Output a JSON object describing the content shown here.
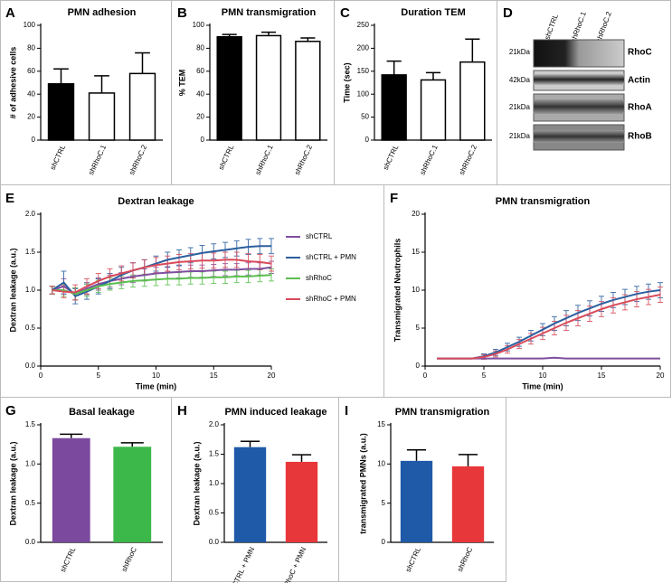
{
  "chart_data": [
    {
      "type": "bar",
      "label": "A",
      "title": "PMN adhesion",
      "ylabel": "# of adhesive cells",
      "categories": [
        "shCTRL",
        "shRhoC.1",
        "shRhoC.2"
      ],
      "values": [
        49,
        41,
        58
      ],
      "errors": [
        13,
        15,
        18
      ],
      "colors": [
        "#000000",
        "#ffffff",
        "#ffffff"
      ],
      "outline": true,
      "ylim": [
        0,
        100
      ],
      "yticks": [
        0,
        20,
        40,
        60,
        80,
        100
      ]
    },
    {
      "type": "bar",
      "label": "B",
      "title": "PMN transmigration",
      "ylabel": "% TEM",
      "categories": [
        "shCTRL",
        "shRhoC.1",
        "shRhoC.2"
      ],
      "values": [
        90,
        91,
        86
      ],
      "errors": [
        2,
        3,
        3
      ],
      "colors": [
        "#000000",
        "#ffffff",
        "#ffffff"
      ],
      "outline": true,
      "ylim": [
        0,
        100
      ],
      "yticks": [
        0,
        20,
        40,
        60,
        80,
        100
      ]
    },
    {
      "type": "bar",
      "label": "C",
      "title": "Duration TEM",
      "ylabel": "Time (sec)",
      "categories": [
        "shCTRL",
        "shRhoC.1",
        "shRhoC.2"
      ],
      "values": [
        142,
        131,
        170
      ],
      "errors": [
        30,
        16,
        50
      ],
      "colors": [
        "#000000",
        "#ffffff",
        "#ffffff"
      ],
      "outline": true,
      "ylim": [
        0,
        250
      ],
      "yticks": [
        0,
        50,
        100,
        150,
        200,
        250
      ]
    },
    {
      "type": "line",
      "label": "E",
      "title": "Dextran leakage",
      "xlabel": "Time (min)",
      "ylabel": "Dextran leakage (a.u.)",
      "legend": "right",
      "x": [
        1,
        2,
        3,
        4,
        5,
        6,
        7,
        8,
        9,
        10,
        11,
        12,
        13,
        14,
        15,
        16,
        17,
        18,
        19,
        20
      ],
      "series": [
        {
          "name": "shCTRL",
          "color": "#7f4f9f",
          "values": [
            1.0,
            1.05,
            0.95,
            1.02,
            1.08,
            1.12,
            1.15,
            1.18,
            1.2,
            1.22,
            1.23,
            1.24,
            1.25,
            1.25,
            1.26,
            1.27,
            1.27,
            1.28,
            1.28,
            1.3
          ],
          "errors": [
            0.05,
            0.1,
            0.08,
            0.08,
            0.08,
            0.08,
            0.08,
            0.08,
            0.08,
            0.08,
            0.08,
            0.08,
            0.08,
            0.08,
            0.08,
            0.08,
            0.08,
            0.08,
            0.08,
            0.08
          ]
        },
        {
          "name": "shCTRL + PMN",
          "color": "#2c5f9e",
          "values": [
            1.0,
            1.1,
            0.92,
            0.98,
            1.05,
            1.12,
            1.2,
            1.26,
            1.3,
            1.35,
            1.4,
            1.43,
            1.46,
            1.49,
            1.51,
            1.53,
            1.55,
            1.57,
            1.58,
            1.58
          ],
          "errors": [
            0.05,
            0.15,
            0.1,
            0.1,
            0.1,
            0.1,
            0.1,
            0.1,
            0.1,
            0.1,
            0.1,
            0.1,
            0.1,
            0.1,
            0.1,
            0.1,
            0.1,
            0.1,
            0.1,
            0.1
          ]
        },
        {
          "name": "shRhoC",
          "color": "#5cbf4f",
          "values": [
            1.0,
            1.0,
            0.95,
            1.0,
            1.05,
            1.08,
            1.1,
            1.12,
            1.13,
            1.14,
            1.15,
            1.15,
            1.16,
            1.16,
            1.17,
            1.17,
            1.18,
            1.18,
            1.19,
            1.2
          ],
          "errors": [
            0.05,
            0.08,
            0.08,
            0.08,
            0.08,
            0.08,
            0.08,
            0.08,
            0.08,
            0.08,
            0.08,
            0.08,
            0.08,
            0.08,
            0.08,
            0.08,
            0.08,
            0.08,
            0.08,
            0.08
          ]
        },
        {
          "name": "shRhoC + PMN",
          "color": "#d84a5a",
          "values": [
            1.0,
            0.98,
            0.97,
            1.05,
            1.12,
            1.18,
            1.22,
            1.26,
            1.3,
            1.33,
            1.35,
            1.37,
            1.38,
            1.39,
            1.39,
            1.4,
            1.4,
            1.38,
            1.37,
            1.35
          ],
          "errors": [
            0.05,
            0.08,
            0.1,
            0.1,
            0.1,
            0.1,
            0.1,
            0.1,
            0.1,
            0.1,
            0.1,
            0.1,
            0.1,
            0.1,
            0.1,
            0.1,
            0.1,
            0.1,
            0.1,
            0.1
          ]
        }
      ],
      "xlim": [
        0,
        20
      ],
      "xticks": [
        0,
        5,
        10,
        15,
        20
      ],
      "ylim": [
        0,
        2
      ],
      "yticks": [
        {
          "value": 0,
          "label": "0.0"
        },
        0.5,
        {
          "value": 1,
          "label": "1.0"
        },
        1.5,
        {
          "value": 2,
          "label": "2.0"
        }
      ]
    },
    {
      "type": "line",
      "label": "F",
      "title": "PMN transmigration",
      "xlabel": "Time (min)",
      "ylabel": "Transmigrated Neutrophils",
      "x": [
        1,
        2,
        3,
        4,
        5,
        6,
        7,
        8,
        9,
        10,
        11,
        12,
        13,
        14,
        15,
        16,
        17,
        18,
        19,
        20
      ],
      "series": [
        {
          "color": "#7f4f9f",
          "values": [
            1,
            1,
            1,
            1,
            1,
            1,
            1,
            1,
            1,
            1,
            1.1,
            1,
            1,
            1,
            1,
            1,
            1,
            1,
            1,
            1
          ],
          "errors": [
            0,
            0,
            0,
            0,
            0,
            0,
            0,
            0,
            0,
            0,
            0,
            0,
            0,
            0,
            0,
            0,
            0,
            0,
            0,
            0
          ]
        },
        {
          "color": "#2c5f9e",
          "values": [
            1,
            1,
            1,
            1,
            1.3,
            1.8,
            2.5,
            3.2,
            4,
            4.8,
            5.6,
            6.3,
            7,
            7.6,
            8.2,
            8.7,
            9.1,
            9.5,
            9.8,
            10
          ],
          "errors": [
            0,
            0,
            0,
            0,
            0.3,
            0.4,
            0.5,
            0.6,
            0.7,
            0.8,
            0.9,
            1,
            1,
            1,
            1,
            1,
            1,
            1,
            1,
            1
          ]
        },
        {
          "color": "#d84a5a",
          "values": [
            1,
            1,
            1,
            1,
            1.2,
            1.6,
            2.2,
            2.9,
            3.6,
            4.3,
            5,
            5.7,
            6.3,
            6.9,
            7.5,
            8,
            8.4,
            8.8,
            9.1,
            9.4
          ],
          "errors": [
            0,
            0,
            0,
            0,
            0.3,
            0.4,
            0.5,
            0.6,
            0.7,
            0.8,
            0.9,
            1,
            1,
            1,
            1,
            1,
            1,
            1,
            1,
            1
          ]
        }
      ],
      "xlim": [
        0,
        20
      ],
      "xticks": [
        0,
        5,
        10,
        15,
        20
      ],
      "ylim": [
        0,
        20
      ],
      "yticks": [
        0,
        5,
        10,
        15,
        20
      ]
    },
    {
      "type": "bar",
      "label": "G",
      "title": "Basal leakage",
      "ylabel": "Dextran leakage (a.u.)",
      "categories": [
        "shCTRL",
        "shRhoC"
      ],
      "values": [
        1.33,
        1.22
      ],
      "errors": [
        0.05,
        0.05
      ],
      "colors": [
        "#7b4a9e",
        "#3cb84a"
      ],
      "outline": false,
      "ylim": [
        0,
        1.5
      ],
      "yticks": [
        {
          "value": 0,
          "label": "0.0"
        },
        0.5,
        {
          "value": 1,
          "label": "1.0"
        },
        1.5
      ]
    },
    {
      "type": "bar",
      "label": "H",
      "title": "PMN induced leakage",
      "ylabel": "Dextran leakage (a.u.)",
      "categories": [
        "shCTRL + PMN",
        "shRhoC + PMN"
      ],
      "values": [
        1.62,
        1.37
      ],
      "errors": [
        0.1,
        0.12
      ],
      "colors": [
        "#1f5aa8",
        "#e8373a"
      ],
      "outline": false,
      "ylim": [
        0,
        2
      ],
      "yticks": [
        {
          "value": 0,
          "label": "0.0"
        },
        0.5,
        {
          "value": 1,
          "label": "1.0"
        },
        1.5,
        {
          "value": 2,
          "label": "2.0"
        }
      ]
    },
    {
      "type": "bar",
      "label": "I",
      "title": "PMN transmigration",
      "ylabel": "transmigrated PMNs (a.u.)",
      "categories": [
        "shCTRL",
        "shRhoC"
      ],
      "values": [
        10.4,
        9.7
      ],
      "errors": [
        1.4,
        1.5
      ],
      "colors": [
        "#1f5aa8",
        "#e8373a"
      ],
      "outline": false,
      "ylim": [
        0,
        15
      ],
      "yticks": [
        0,
        5,
        10,
        15
      ]
    }
  ],
  "blot": {
    "label": "D",
    "lanes": [
      "shCTRL",
      "shRhoC.1",
      "shRhoC.2"
    ],
    "rows": [
      {
        "marker": "21kDa",
        "protein": "RhoC"
      },
      {
        "marker": "42kDa",
        "protein": "Actin"
      },
      {
        "marker": "21kDa",
        "protein": "RhoA"
      },
      {
        "marker": "21kDa",
        "protein": "RhoB"
      }
    ]
  }
}
